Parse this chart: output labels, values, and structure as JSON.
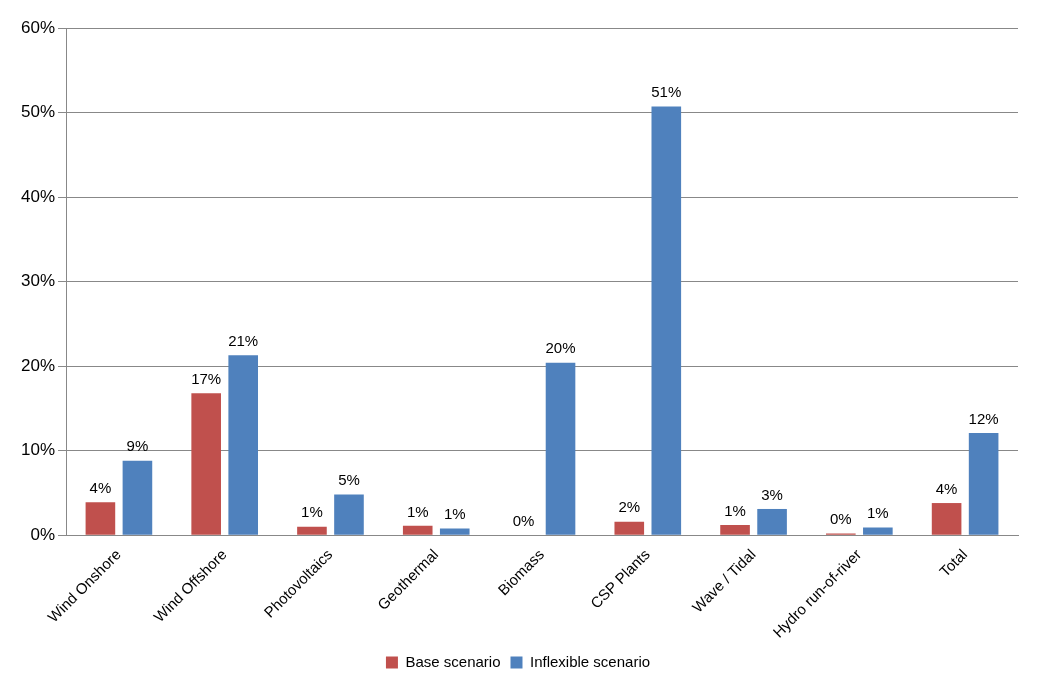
{
  "chart_data": {
    "type": "bar",
    "categories": [
      "Wind Onshore",
      "Wind Offshore",
      "Photovoltaics",
      "Geothermal",
      "Biomass",
      "CSP Plants",
      "Wave / Tidal",
      "Hydro run-of-river",
      "Total"
    ],
    "series": [
      {
        "name": "Base scenario",
        "color": "#c0504d",
        "values": [
          3.9,
          16.8,
          1.0,
          1.1,
          0,
          1.6,
          1.2,
          0.2,
          3.8
        ],
        "value_labels": [
          "4%",
          "17%",
          "1%",
          "1%",
          "0%",
          "2%",
          "1%",
          "0%",
          "4%"
        ]
      },
      {
        "name": "Inflexible scenario",
        "color": "#4f81bd",
        "values": [
          8.8,
          21.3,
          4.8,
          0.8,
          20.4,
          50.7,
          3.1,
          0.9,
          12.1
        ],
        "value_labels": [
          "9%",
          "21%",
          "5%",
          "1%",
          "20%",
          "51%",
          "3%",
          "1%",
          "12%"
        ]
      }
    ],
    "ylim": [
      0,
      60
    ],
    "yticks": [
      {
        "value": 0,
        "label": "0%"
      },
      {
        "value": 10,
        "label": "10%"
      },
      {
        "value": 20,
        "label": "20%"
      },
      {
        "value": 30,
        "label": "30%"
      },
      {
        "value": 40,
        "label": "40%"
      },
      {
        "value": 50,
        "label": "50%"
      },
      {
        "value": 60,
        "label": "60%"
      }
    ],
    "grid": "y",
    "legend": "bottom"
  }
}
